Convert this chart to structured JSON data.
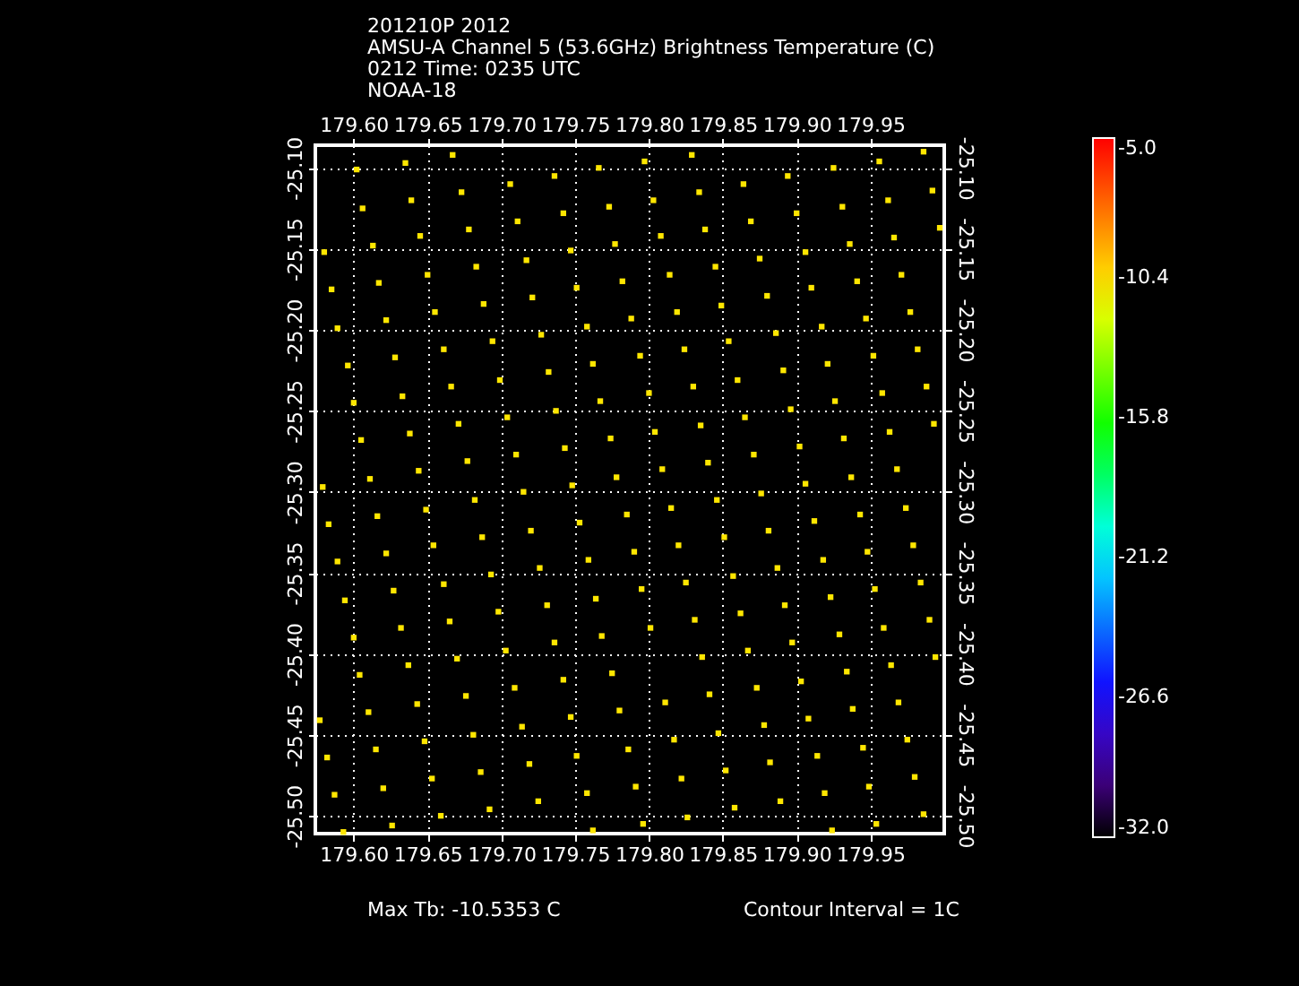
{
  "chart_data": {
    "type": "scatter",
    "title": "201210P 2012",
    "subtitle": "AMSU-A Channel 5 (53.6GHz) Brightness Temperature (C)\n0212 Time: 0235 UTC\nNOAA-18",
    "annotations": [
      "Max Tb:    -10.5353   C",
      "Contour Interval = 1C"
    ],
    "x": [
      179.667,
      179.635,
      179.602,
      179.736,
      179.766,
      179.706,
      179.673,
      179.639,
      179.606,
      179.742,
      179.773,
      179.711,
      179.678,
      179.645,
      179.613,
      179.58,
      179.747,
      179.777,
      179.717,
      179.683,
      179.65,
      179.617,
      179.585,
      179.751,
      179.782,
      179.721,
      179.688,
      179.655,
      179.622,
      179.589,
      179.758,
      179.727,
      179.694,
      179.661,
      179.628,
      179.596,
      179.762,
      179.732,
      179.699,
      179.666,
      179.633,
      179.6,
      179.767,
      179.737,
      179.704,
      179.671,
      179.638,
      179.605,
      179.774,
      179.743,
      179.71,
      179.677,
      179.829,
      179.797,
      179.956,
      179.986,
      179.925,
      179.894,
      179.864,
      179.834,
      179.803,
      179.992,
      179.962,
      179.931,
      179.9,
      179.869,
      179.838,
      179.808,
      179.997,
      179.966,
      179.936,
      179.906,
      179.875,
      179.845,
      179.814,
      179.971,
      179.941,
      179.91,
      179.88,
      179.849,
      179.819,
      179.788,
      179.977,
      179.947,
      179.917,
      179.886,
      179.854,
      179.824,
      179.794,
      179.982,
      179.952,
      179.921,
      179.891,
      179.86,
      179.83,
      179.8,
      179.988,
      179.958,
      179.926,
      179.896,
      179.865,
      179.835,
      179.804,
      179.993,
      179.963,
      179.932,
      179.902,
      179.871,
      179.84,
      179.611,
      179.644,
      179.579,
      179.682,
      179.715,
      179.748,
      179.778,
      179.649,
      179.616,
      179.583,
      179.72,
      179.687,
      179.654,
      179.622,
      179.589,
      179.753,
      179.726,
      179.693,
      179.661,
      179.627,
      179.594,
      179.759,
      179.731,
      179.698,
      179.665,
      179.632,
      179.6,
      179.764,
      179.736,
      179.703,
      179.67,
      179.637,
      179.604,
      179.768,
      179.742,
      179.709,
      179.676,
      179.643,
      179.61,
      179.577,
      179.775,
      179.747,
      179.714,
      179.681,
      179.648,
      179.615,
      179.582,
      179.78,
      179.751,
      179.719,
      179.686,
      179.653,
      179.62,
      179.587,
      179.758,
      179.725,
      179.692,
      179.659,
      179.626,
      179.593,
      179.762,
      179.809,
      179.937,
      179.968,
      179.906,
      179.876,
      179.846,
      179.815,
      179.785,
      179.974,
      179.943,
      179.912,
      179.881,
      179.851,
      179.82,
      179.79,
      179.979,
      179.948,
      179.918,
      179.887,
      179.857,
      179.825,
      179.795,
      179.984,
      179.953,
      179.923,
      179.892,
      179.862,
      179.831,
      179.801,
      179.99,
      179.959,
      179.929,
      179.897,
      179.867,
      179.836,
      179.994,
      179.964,
      179.934,
      179.903,
      179.873,
      179.841,
      179.811,
      179.969,
      179.938,
      179.908,
      179.878,
      179.847,
      179.817,
      179.786,
      179.975,
      179.945,
      179.914,
      179.882,
      179.852,
      179.822,
      179.791,
      179.98,
      179.949,
      179.919,
      179.889,
      179.858,
      179.826,
      179.796,
      179.986,
      179.954,
      179.924
    ],
    "values": [
      -25.092,
      -25.097,
      -25.101,
      -25.105,
      -25.1,
      -25.11,
      -25.115,
      -25.12,
      -25.125,
      -25.128,
      -25.124,
      -25.133,
      -25.138,
      -25.142,
      -25.148,
      -25.152,
      -25.151,
      -25.147,
      -25.157,
      -25.161,
      -25.166,
      -25.171,
      -25.175,
      -25.174,
      -25.17,
      -25.18,
      -25.184,
      -25.189,
      -25.194,
      -25.199,
      -25.198,
      -25.203,
      -25.207,
      -25.212,
      -25.217,
      -25.222,
      -25.221,
      -25.226,
      -25.231,
      -25.235,
      -25.241,
      -25.245,
      -25.244,
      -25.25,
      -25.254,
      -25.258,
      -25.264,
      -25.268,
      -25.267,
      -25.273,
      -25.277,
      -25.281,
      -25.092,
      -25.096,
      -25.096,
      -25.09,
      -25.1,
      -25.105,
      -25.11,
      -25.115,
      -25.12,
      -25.114,
      -25.12,
      -25.124,
      -25.128,
      -25.133,
      -25.138,
      -25.142,
      -25.137,
      -25.143,
      -25.147,
      -25.152,
      -25.156,
      -25.161,
      -25.166,
      -25.166,
      -25.17,
      -25.174,
      -25.179,
      -25.185,
      -25.189,
      -25.193,
      -25.189,
      -25.193,
      -25.198,
      -25.202,
      -25.207,
      -25.212,
      -25.216,
      -25.212,
      -25.216,
      -25.221,
      -25.225,
      -25.231,
      -25.235,
      -25.239,
      -25.235,
      -25.239,
      -25.244,
      -25.249,
      -25.254,
      -25.259,
      -25.263,
      -25.258,
      -25.263,
      -25.267,
      -25.272,
      -25.277,
      -25.282,
      -25.292,
      -25.287,
      -25.297,
      -25.305,
      -25.3,
      -25.296,
      -25.291,
      -25.311,
      -25.315,
      -25.32,
      -25.324,
      -25.328,
      -25.333,
      -25.338,
      -25.343,
      -25.319,
      -25.347,
      -25.351,
      -25.357,
      -25.361,
      -25.367,
      -25.342,
      -25.37,
      -25.374,
      -25.38,
      -25.384,
      -25.39,
      -25.366,
      -25.393,
      -25.398,
      -25.403,
      -25.407,
      -25.413,
      -25.389,
      -25.416,
      -25.421,
      -25.426,
      -25.431,
      -25.436,
      -25.441,
      -25.412,
      -25.439,
      -25.445,
      -25.45,
      -25.454,
      -25.459,
      -25.464,
      -25.435,
      -25.463,
      -25.468,
      -25.473,
      -25.477,
      -25.483,
      -25.487,
      -25.486,
      -25.491,
      -25.496,
      -25.5,
      -25.506,
      -25.51,
      -25.509,
      -25.286,
      -25.291,
      -25.286,
      -25.295,
      -25.301,
      -25.305,
      -25.31,
      -25.314,
      -25.31,
      -25.314,
      -25.318,
      -25.324,
      -25.328,
      -25.333,
      -25.337,
      -25.333,
      -25.337,
      -25.342,
      -25.347,
      -25.352,
      -25.356,
      -25.36,
      -25.356,
      -25.36,
      -25.365,
      -25.37,
      -25.375,
      -25.379,
      -25.384,
      -25.379,
      -25.384,
      -25.388,
      -25.393,
      -25.398,
      -25.402,
      -25.402,
      -25.407,
      -25.411,
      -25.417,
      -25.421,
      -25.425,
      -25.43,
      -25.43,
      -25.434,
      -25.44,
      -25.444,
      -25.449,
      -25.453,
      -25.459,
      -25.453,
      -25.458,
      -25.463,
      -25.467,
      -25.472,
      -25.477,
      -25.482,
      -25.476,
      -25.482,
      -25.486,
      -25.491,
      -25.495,
      -25.501,
      -25.505,
      -25.499,
      -25.505,
      -25.509
    ],
    "cvalues": [
      -10.6,
      -10.6,
      -10.6,
      -10.6,
      -10.6,
      -10.6,
      -10.6,
      -10.6,
      -10.6,
      -10.6,
      -10.6,
      -10.6,
      -10.6,
      -10.6,
      -10.6,
      -10.6,
      -10.6,
      -10.6,
      -10.6,
      -10.6,
      -10.6,
      -10.6,
      -10.6,
      -10.6,
      -10.6,
      -10.6,
      -10.6,
      -10.6,
      -10.6,
      -10.6,
      -10.6,
      -10.6,
      -10.6,
      -10.6,
      -10.6,
      -10.6,
      -10.6,
      -10.6,
      -10.6,
      -10.6,
      -10.6,
      -10.6,
      -10.6,
      -10.6,
      -10.6,
      -10.6,
      -10.6,
      -10.6,
      -10.6,
      -10.6,
      -10.6,
      -10.6,
      -10.6,
      -10.6,
      -10.6,
      -10.6,
      -10.6,
      -10.6,
      -10.6,
      -10.6,
      -10.6,
      -10.6,
      -10.6,
      -10.6,
      -10.6,
      -10.6,
      -10.6,
      -10.6,
      -10.6,
      -10.6,
      -10.6,
      -10.6,
      -10.6,
      -10.6,
      -10.6,
      -10.6,
      -10.6,
      -10.6,
      -10.6,
      -10.6,
      -10.6,
      -10.6,
      -10.6,
      -10.6,
      -10.6,
      -10.6,
      -10.6,
      -10.6,
      -10.6,
      -10.6,
      -10.6,
      -10.6,
      -10.6,
      -10.6,
      -10.6,
      -10.6,
      -10.6,
      -10.6,
      -10.6,
      -10.6,
      -10.6,
      -10.6,
      -10.6,
      -10.6,
      -10.6,
      -10.6,
      -10.6,
      -10.6,
      -10.6,
      -10.6,
      -10.6,
      -10.6,
      -10.6,
      -10.6,
      -10.6,
      -10.6,
      -10.6,
      -10.6,
      -10.6,
      -10.6,
      -10.6,
      -10.6,
      -10.6,
      -10.6,
      -10.6,
      -10.6,
      -10.6,
      -10.6,
      -10.6,
      -10.6,
      -10.6,
      -10.6,
      -10.6,
      -10.6,
      -10.6,
      -10.6,
      -10.6,
      -10.6,
      -10.6,
      -10.6,
      -10.6,
      -10.6,
      -10.6,
      -10.6,
      -10.6,
      -10.6,
      -10.6,
      -10.6,
      -10.6,
      -10.6,
      -10.6,
      -10.6,
      -10.6,
      -10.6,
      -10.6,
      -10.6,
      -10.6,
      -10.6,
      -10.6,
      -10.6,
      -10.6,
      -10.6,
      -10.6,
      -10.6,
      -10.6,
      -10.6,
      -10.6,
      -10.6,
      -10.6,
      -10.6,
      -10.6,
      -10.6,
      -10.6,
      -10.6,
      -10.6,
      -10.6,
      -10.6,
      -10.6,
      -10.6,
      -10.6,
      -10.6,
      -10.6,
      -10.6,
      -10.6,
      -10.6,
      -10.6,
      -10.6,
      -10.6,
      -10.6,
      -10.6,
      -10.6,
      -10.6,
      -10.6,
      -10.6,
      -10.6,
      -10.6,
      -10.6,
      -10.6,
      -10.6,
      -10.6,
      -10.6,
      -10.6,
      -10.6,
      -10.6,
      -10.6,
      -10.6,
      -10.6,
      -10.6,
      -10.6,
      -10.6,
      -10.6,
      -10.6,
      -10.6,
      -10.6,
      -10.6,
      -10.6,
      -10.6,
      -10.6,
      -10.6,
      -10.6,
      -10.6,
      -10.6,
      -10.6,
      -10.6,
      -10.6,
      -10.6,
      -10.6,
      -10.6,
      -10.6,
      -10.6,
      -10.6,
      -10.6,
      -10.6,
      -10.6,
      -10.6,
      -10.6
    ],
    "clim": [
      -32,
      -5
    ],
    "cticks": [
      {
        "value": -32,
        "label": "-32.0"
      },
      -26.6,
      -21.2,
      -15.8,
      -10.4,
      {
        "value": -5,
        "label": "-5.0"
      }
    ],
    "xlim": [
      179.574,
      180.0
    ],
    "xticks": [
      {
        "value": 179.6,
        "label": "179.60"
      },
      179.65,
      {
        "value": 179.7,
        "label": "179.70"
      },
      179.75,
      {
        "value": 179.8,
        "label": "179.80"
      },
      179.85,
      {
        "value": 179.9,
        "label": "179.90"
      },
      179.95
    ],
    "x2lim": [
      179.574,
      180.0
    ],
    "x2ticks": [
      {
        "value": 179.6,
        "label": "179.60"
      },
      179.65,
      {
        "value": 179.7,
        "label": "179.70"
      },
      179.75,
      {
        "value": 179.8,
        "label": "179.80"
      },
      179.85,
      {
        "value": 179.9,
        "label": "179.90"
      },
      179.95
    ],
    "ylim": [
      -25.511,
      -25.086
    ],
    "yticks": [
      {
        "value": -25.1,
        "label": "-25.10"
      },
      -25.15,
      {
        "value": -25.2,
        "label": "-25.20"
      },
      -25.25,
      {
        "value": -25.3,
        "label": "-25.30"
      },
      -25.35,
      {
        "value": -25.4,
        "label": "-25.40"
      },
      -25.45,
      {
        "value": -25.5,
        "label": "-25.50"
      }
    ],
    "y2lim": [
      -25.511,
      -25.086
    ],
    "y2ticks": [
      {
        "value": -25.1,
        "label": "-25.10"
      },
      -25.15,
      {
        "value": -25.2,
        "label": "-25.20"
      },
      -25.25,
      {
        "value": -25.3,
        "label": "-25.30"
      },
      -25.35,
      {
        "value": -25.4,
        "label": "-25.40"
      },
      -25.45,
      {
        "value": -25.5,
        "label": "-25.50"
      }
    ],
    "grid": true,
    "marker": "square"
  }
}
